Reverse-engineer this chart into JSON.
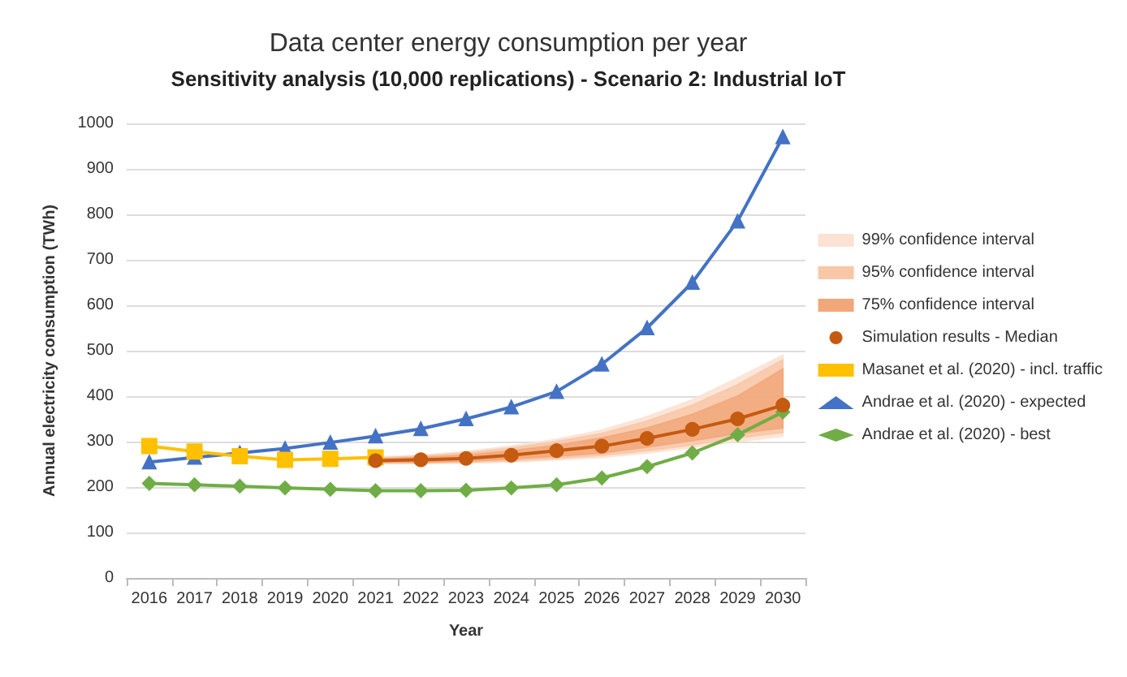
{
  "chart_data": {
    "type": "line",
    "title": "Data center energy consumption per year",
    "subtitle": "Sensitivity analysis (10,000 replications) - Scenario 2: Industrial IoT",
    "xlabel": "Year",
    "ylabel": "Annual electricity consumption (TWh)",
    "categories": [
      "2016",
      "2017",
      "2018",
      "2019",
      "2020",
      "2021",
      "2022",
      "2023",
      "2024",
      "2025",
      "2026",
      "2027",
      "2028",
      "2029",
      "2030"
    ],
    "ylim": [
      0,
      1000
    ],
    "yticks": [
      0,
      100,
      200,
      300,
      400,
      500,
      600,
      700,
      800,
      900,
      1000
    ],
    "grid": "y",
    "legend": "right",
    "series": [
      {
        "name": "99% confidence interval",
        "type": "area",
        "color": "#fbe2d2",
        "values": [
          null,
          null,
          null,
          null,
          null,
          null,
          null,
          null,
          null,
          null,
          null,
          null,
          null,
          null,
          null
        ],
        "lower": [
          null,
          null,
          null,
          null,
          null,
          252,
          252,
          253,
          255,
          260,
          265,
          275,
          287,
          300,
          312
        ],
        "upper": [
          null,
          null,
          null,
          null,
          null,
          266,
          270,
          278,
          290,
          305,
          325,
          355,
          392,
          440,
          490
        ]
      },
      {
        "name": "95% confidence interval",
        "type": "area",
        "color": "#f8c7a8",
        "values": [
          null,
          null,
          null,
          null,
          null,
          null,
          null,
          null,
          null,
          null,
          null,
          null,
          null,
          null,
          null
        ],
        "lower": [
          null,
          null,
          null,
          null,
          null,
          253,
          253,
          255,
          258,
          263,
          270,
          280,
          293,
          308,
          320
        ],
        "upper": [
          null,
          null,
          null,
          null,
          null,
          264,
          268,
          275,
          286,
          300,
          318,
          345,
          380,
          425,
          480
        ]
      },
      {
        "name": "75% confidence interval",
        "type": "area",
        "color": "#f2a77a",
        "values": [
          null,
          null,
          null,
          null,
          null,
          null,
          null,
          null,
          null,
          null,
          null,
          null,
          null,
          null,
          null
        ],
        "lower": [
          null,
          null,
          null,
          null,
          null,
          255,
          255,
          257,
          262,
          268,
          275,
          288,
          302,
          318,
          330
        ],
        "upper": [
          null,
          null,
          null,
          null,
          null,
          262,
          265,
          270,
          280,
          292,
          308,
          330,
          360,
          400,
          460
        ]
      },
      {
        "name": "Simulation results - Median",
        "color": "#c55a11",
        "marker": "circle",
        "values": [
          null,
          null,
          null,
          null,
          null,
          258,
          260,
          263,
          270,
          280,
          290,
          307,
          327,
          350,
          380
        ]
      },
      {
        "name": "Masanet et al. (2020) - incl. traffic",
        "color": "#ffc000",
        "marker": "square",
        "values": [
          290,
          278,
          268,
          260,
          262,
          265,
          null,
          null,
          null,
          null,
          null,
          null,
          null,
          null,
          null
        ]
      },
      {
        "name": "Andrae et al. (2020) - expected",
        "color": "#4472c4",
        "marker": "triangle",
        "values": [
          255,
          265,
          275,
          285,
          298,
          312,
          328,
          350,
          376,
          410,
          470,
          550,
          650,
          785,
          970
        ]
      },
      {
        "name": "Andrae et al. (2020) - best",
        "color": "#70ad47",
        "marker": "diamond",
        "values": [
          208,
          205,
          202,
          198,
          195,
          192,
          192,
          193,
          198,
          205,
          220,
          245,
          275,
          315,
          365
        ]
      }
    ]
  }
}
